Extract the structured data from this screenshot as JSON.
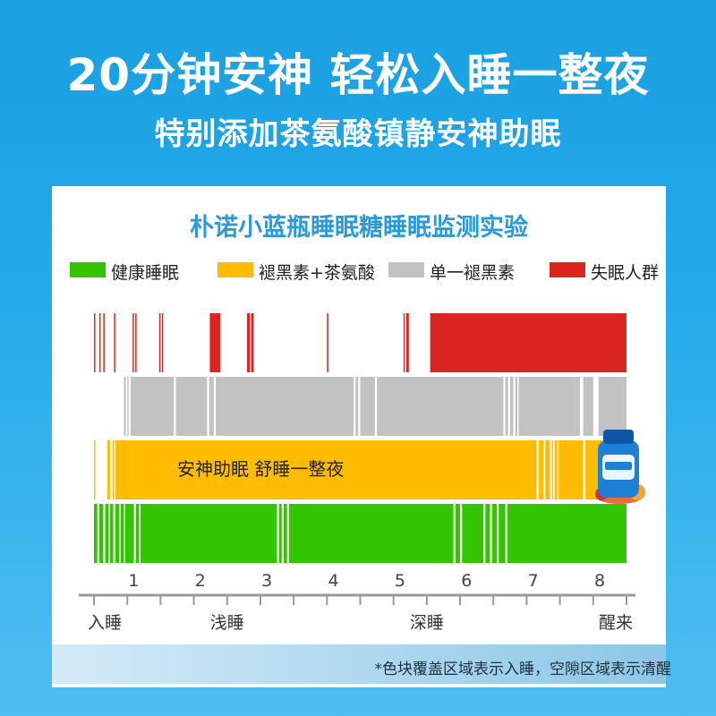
{
  "header": {
    "headline": "20分钟安神 轻松入睡一整夜",
    "subheadline": "特别添加茶氨酸镇静安神助眠"
  },
  "footnote": "*色块覆盖区域表示入睡，空隙区域表示清醒",
  "chart_data": {
    "type": "bar",
    "title": "朴诺小蓝瓶睡眠糖睡眠监测实验",
    "xlabel": "",
    "ylabel": "",
    "x_range": [
      0,
      8
    ],
    "x_ticks": [
      "1",
      "2",
      "3",
      "4",
      "5",
      "6",
      "7",
      "8"
    ],
    "phase_labels": [
      {
        "text": "入睡",
        "x": 0
      },
      {
        "text": "浅睡",
        "x": 2
      },
      {
        "text": "深睡",
        "x": 5
      },
      {
        "text": "醒来",
        "x": 8
      }
    ],
    "legend": [
      {
        "name": "健康睡眠",
        "color": "#33c600"
      },
      {
        "name": "褪黑素+茶氨酸",
        "color": "#ffbc00"
      },
      {
        "name": "单一褪黑素",
        "color": "#c2c2c2"
      },
      {
        "name": "失眠人群",
        "color": "#da2520"
      }
    ],
    "series": [
      {
        "name": "失眠人群",
        "color": "#da2520",
        "sleep_segments": [
          [
            0.0,
            0.02
          ],
          [
            0.08,
            0.1
          ],
          [
            0.14,
            0.16
          ],
          [
            0.3,
            0.32
          ],
          [
            0.58,
            0.6
          ],
          [
            0.62,
            0.64
          ],
          [
            0.98,
            1.0
          ],
          [
            1.02,
            1.04
          ],
          [
            1.74,
            1.9
          ],
          [
            2.3,
            2.34
          ],
          [
            2.36,
            2.4
          ],
          [
            3.5,
            3.52
          ],
          [
            4.65,
            4.67
          ],
          [
            4.69,
            4.73
          ],
          [
            5.05,
            8.0
          ]
        ]
      },
      {
        "name": "单一褪黑素",
        "color": "#c2c2c2",
        "sleep_segments": [
          [
            0.45,
            0.48
          ],
          [
            0.5,
            0.52
          ],
          [
            0.55,
            7.3
          ],
          [
            7.35,
            7.5
          ],
          [
            7.58,
            8.0
          ]
        ],
        "wake_gaps": [
          [
            1.2,
            1.23
          ],
          [
            1.7,
            1.73
          ],
          [
            1.8,
            1.83
          ],
          [
            3.9,
            3.93
          ],
          [
            3.97,
            4.0
          ],
          [
            4.22,
            4.25
          ],
          [
            6.15,
            6.18
          ],
          [
            6.22,
            6.25
          ],
          [
            6.3,
            6.33
          ],
          [
            6.36,
            6.38
          ]
        ]
      },
      {
        "name": "褪黑素+茶氨酸",
        "color": "#ffbc00",
        "annotation": "安神助眠 舒睡一整夜",
        "sleep_segments": [
          [
            0.0,
            0.02
          ],
          [
            0.2,
            0.24
          ],
          [
            0.28,
            0.3
          ],
          [
            0.32,
            8.0
          ]
        ],
        "wake_gaps": [
          [
            6.65,
            6.68
          ],
          [
            6.75,
            6.78
          ],
          [
            6.85,
            6.88
          ],
          [
            6.9,
            6.92
          ],
          [
            6.96,
            6.98
          ],
          [
            7.35,
            7.38
          ]
        ]
      },
      {
        "name": "健康睡眠",
        "color": "#33c600",
        "sleep_segments": [
          [
            0.0,
            8.0
          ]
        ],
        "wake_gaps": [
          [
            0.05,
            0.08
          ],
          [
            0.14,
            0.17
          ],
          [
            0.22,
            0.24
          ],
          [
            0.29,
            0.32
          ],
          [
            0.38,
            0.4
          ],
          [
            0.45,
            0.47
          ],
          [
            0.6,
            0.63
          ],
          [
            0.68,
            0.7
          ],
          [
            2.75,
            2.78
          ],
          [
            2.82,
            2.85
          ],
          [
            2.9,
            2.93
          ],
          [
            5.4,
            5.43
          ],
          [
            5.5,
            5.53
          ],
          [
            5.85,
            5.88
          ],
          [
            5.95,
            5.98
          ],
          [
            6.05,
            6.08
          ],
          [
            6.18,
            6.21
          ]
        ]
      }
    ]
  }
}
